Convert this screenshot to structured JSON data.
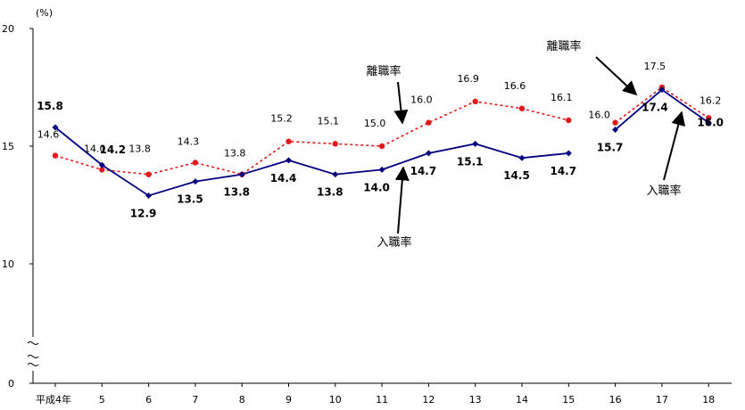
{
  "chart_data": {
    "type": "line",
    "y_unit": "(%)",
    "y_ticks": [
      20,
      15,
      10,
      0
    ],
    "axis_break": true,
    "ylim": [
      0,
      20
    ],
    "categories": [
      "平成4年",
      "5",
      "6",
      "7",
      "8",
      "9",
      "10",
      "11",
      "12",
      "13",
      "14",
      "15",
      "16",
      "17",
      "18"
    ],
    "series": [
      {
        "name": "離職率",
        "color": "#e31a1c",
        "dash": true,
        "segments": [
          [
            0,
            11
          ],
          [
            12,
            14
          ]
        ],
        "values": [
          14.6,
          14.0,
          13.8,
          14.3,
          13.8,
          15.2,
          15.1,
          15.0,
          16.0,
          16.9,
          16.6,
          16.1,
          16.0,
          17.5,
          16.2
        ],
        "labels": [
          "14.6",
          "14.0",
          "13.8",
          "14.3",
          "13.8",
          "15.2",
          "15.1",
          "15.0",
          "16.0",
          "16.9",
          "16.6",
          "16.1",
          "16.0",
          "17.5",
          "16.2"
        ]
      },
      {
        "name": "入職率",
        "color": "#000080",
        "dash": false,
        "segments": [
          [
            0,
            11
          ],
          [
            12,
            14
          ]
        ],
        "values": [
          15.8,
          14.2,
          12.9,
          13.5,
          13.8,
          14.4,
          13.8,
          14.0,
          14.7,
          15.1,
          14.5,
          14.7,
          15.7,
          17.4,
          16.0
        ],
        "labels": [
          "15.8",
          "14.2",
          "12.9",
          "13.5",
          "13.8",
          "14.4",
          "13.8",
          "14.0",
          "14.7",
          "15.1",
          "14.5",
          "14.7",
          "15.7",
          "17.4",
          "16.0"
        ]
      }
    ],
    "annotations": [
      "離職率",
      "入職率",
      "離職率",
      "入職率"
    ]
  }
}
